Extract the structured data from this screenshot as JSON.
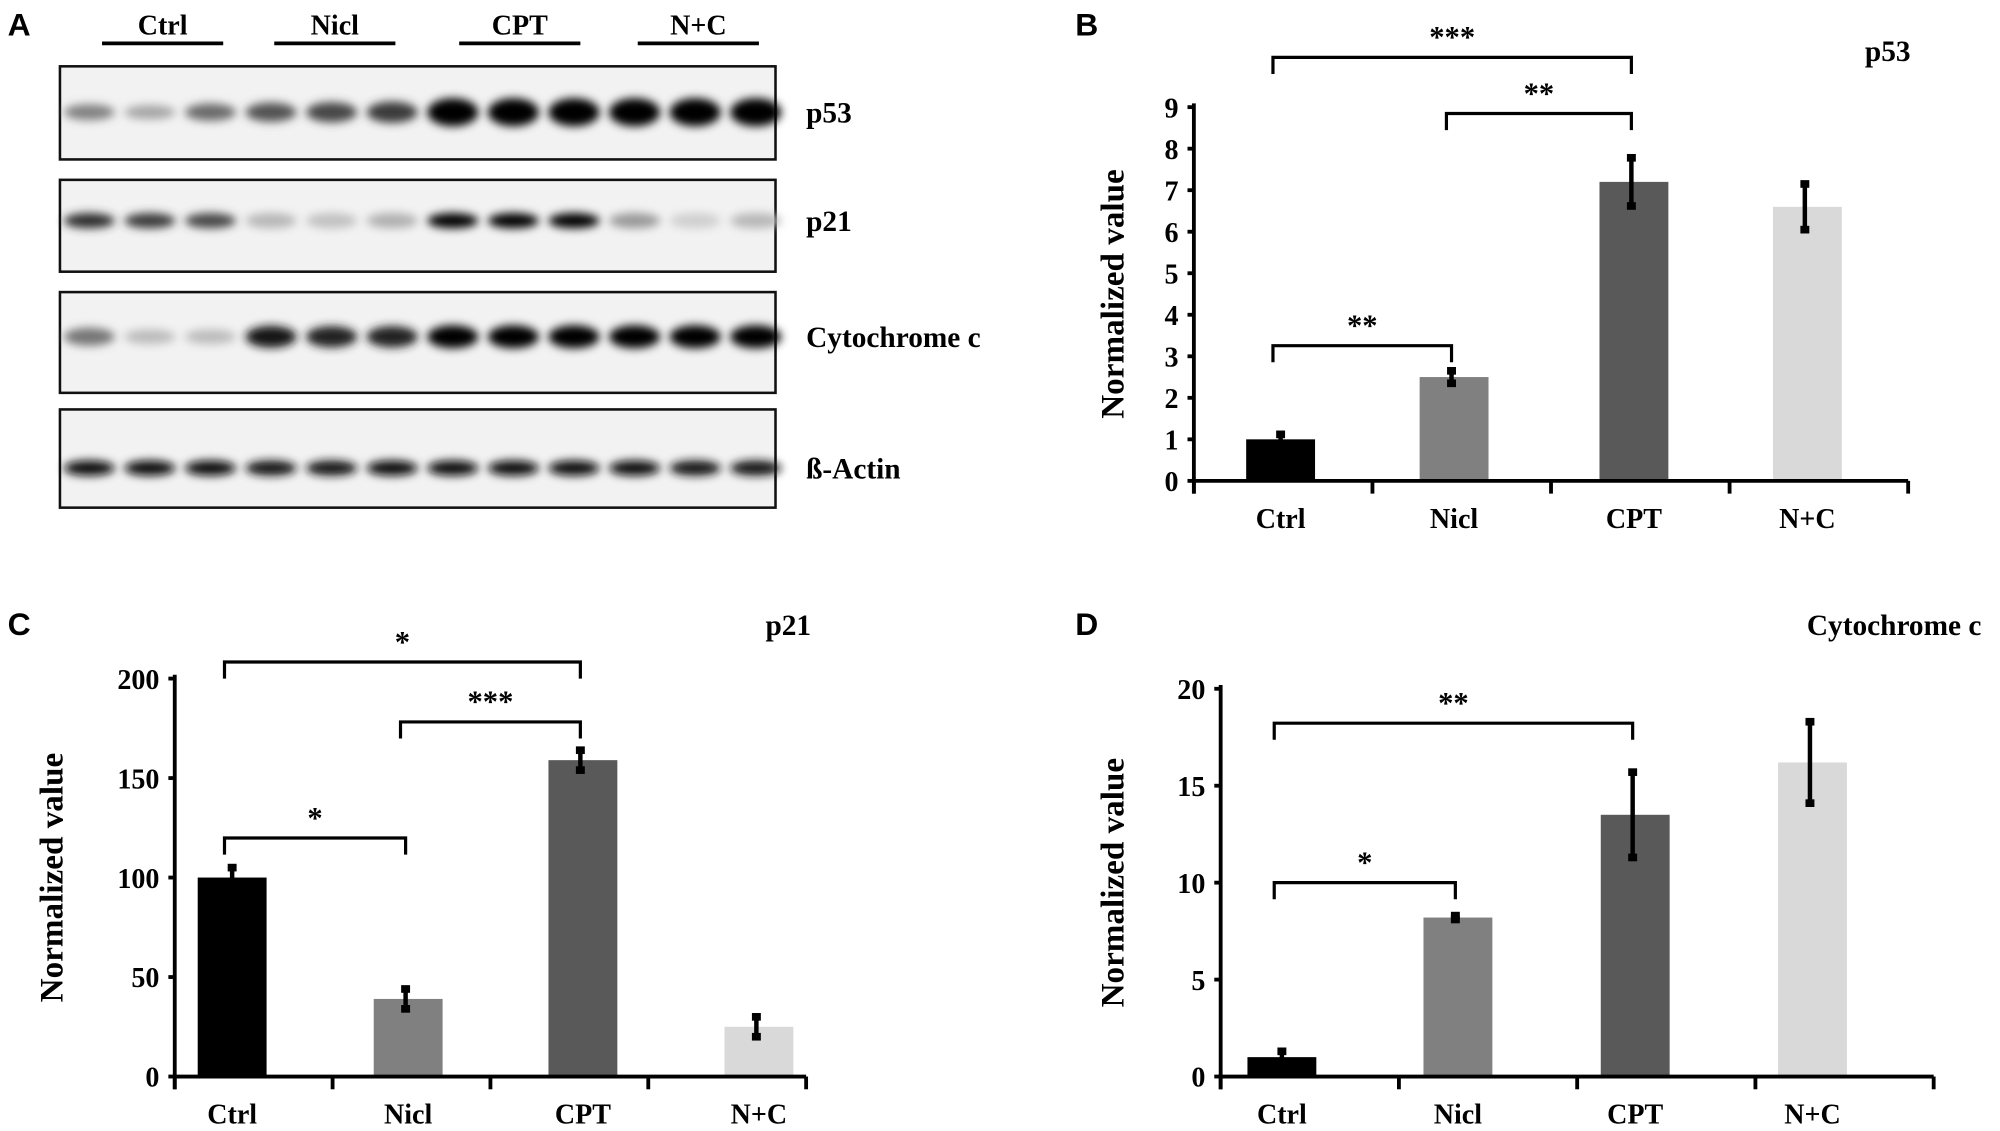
{
  "panel_letters": {
    "a": "A",
    "b": "B",
    "c": "C",
    "d": "D"
  },
  "blot": {
    "groups": [
      "Ctrl",
      "Nicl",
      "CPT",
      "N+C"
    ],
    "rows": [
      {
        "label": "p53",
        "band_intensity": [
          0.45,
          0.3,
          0.55,
          0.65,
          0.7,
          0.75,
          1,
          1,
          1,
          1,
          1,
          1
        ]
      },
      {
        "label": "p21",
        "band_intensity": [
          0.8,
          0.75,
          0.7,
          0.22,
          0.18,
          0.25,
          1,
          1,
          1,
          0.35,
          0.12,
          0.22
        ]
      },
      {
        "label": "Cytochrome c",
        "band_intensity": [
          0.5,
          0.2,
          0.2,
          0.9,
          0.85,
          0.85,
          1,
          1,
          1,
          1,
          1,
          1
        ]
      },
      {
        "label": "ß-Actin",
        "band_intensity": [
          0.95,
          0.95,
          0.95,
          0.92,
          0.92,
          0.95,
          0.95,
          0.95,
          0.95,
          0.95,
          0.92,
          0.92
        ]
      }
    ]
  },
  "chart_data": [
    {
      "type": "bar",
      "panel": "B",
      "title": "p53",
      "ylabel": "Normalized value",
      "xlabel": "",
      "categories": [
        "Ctrl",
        "Nicl",
        "CPT",
        "N+C"
      ],
      "values": [
        1.0,
        2.5,
        7.2,
        6.6
      ],
      "errors": [
        0.12,
        0.15,
        0.58,
        0.55
      ],
      "ylim": [
        0,
        9
      ],
      "yticks": [
        "0",
        "1",
        "2",
        "3",
        "4",
        "5",
        "6",
        "7",
        "8",
        "9"
      ],
      "colors": [
        "#000000",
        "#808080",
        "#595959",
        "#d9d9d9"
      ],
      "significance": [
        {
          "from": "Ctrl",
          "to": "CPT",
          "label": "***"
        },
        {
          "from": "Nicl",
          "to": "CPT",
          "label": "**"
        },
        {
          "from": "Ctrl",
          "to": "Nicl",
          "label": "**"
        }
      ]
    },
    {
      "type": "bar",
      "panel": "C",
      "title": "p21",
      "ylabel": "Normalized value",
      "xlabel": "",
      "categories": [
        "Ctrl",
        "Nicl",
        "CPT",
        "N+C"
      ],
      "values": [
        100,
        39,
        159,
        25
      ],
      "errors": [
        5,
        5,
        5,
        5
      ],
      "ylim": [
        0,
        200
      ],
      "yticks": [
        "0",
        "50",
        "100",
        "150",
        "200"
      ],
      "colors": [
        "#000000",
        "#808080",
        "#595959",
        "#d9d9d9"
      ],
      "significance": [
        {
          "from": "Ctrl",
          "to": "CPT",
          "label": "*"
        },
        {
          "from": "Nicl",
          "to": "CPT",
          "label": "***"
        },
        {
          "from": "Ctrl",
          "to": "Nicl",
          "label": "*"
        }
      ]
    },
    {
      "type": "bar",
      "panel": "D",
      "title": "Cytochrome c",
      "ylabel": "Normalized value",
      "xlabel": "",
      "categories": [
        "Ctrl",
        "Nicl",
        "CPT",
        "N+C"
      ],
      "values": [
        1.0,
        8.2,
        13.5,
        16.2
      ],
      "errors": [
        0.3,
        0.1,
        2.2,
        2.1
      ],
      "ylim": [
        0,
        20
      ],
      "yticks": [
        "0",
        "5",
        "10",
        "15",
        "20"
      ],
      "colors": [
        "#000000",
        "#808080",
        "#595959",
        "#d9d9d9"
      ],
      "significance": [
        {
          "from": "Ctrl",
          "to": "CPT",
          "label": "**"
        },
        {
          "from": "Ctrl",
          "to": "Nicl",
          "label": "*"
        }
      ]
    }
  ]
}
